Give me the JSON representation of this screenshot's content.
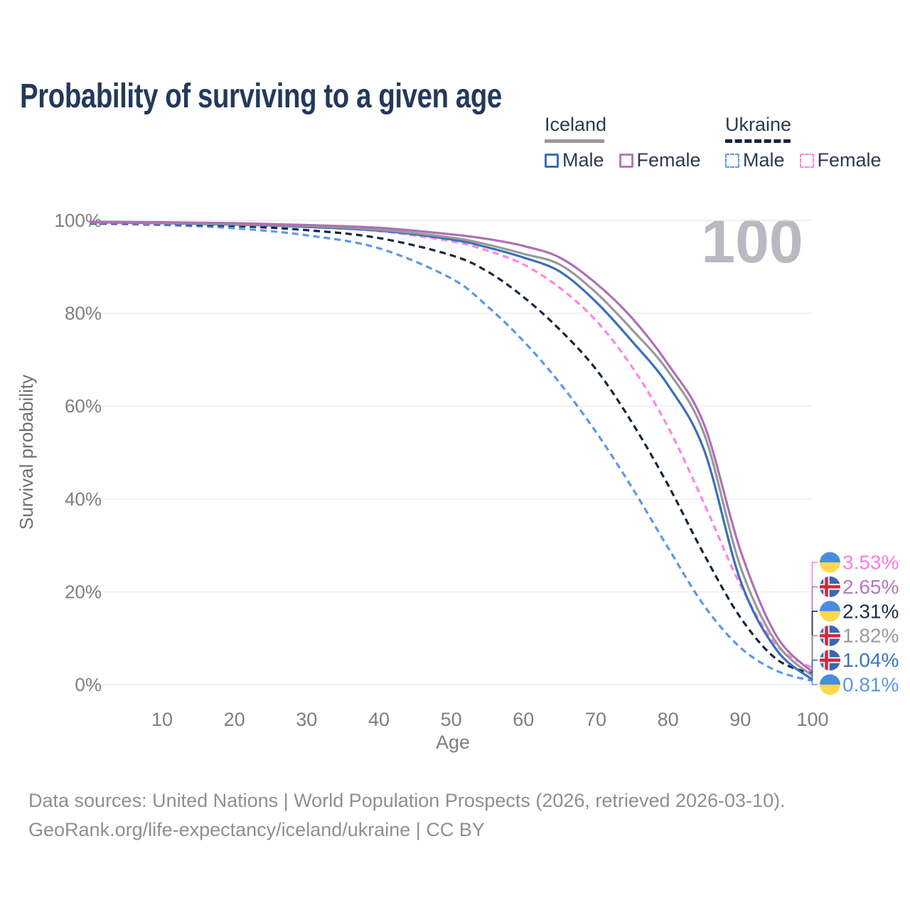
{
  "title": "Probability of surviving to a given age",
  "watermark": "100",
  "legend": {
    "groups": [
      {
        "label": "Iceland",
        "line_style": "solid",
        "line_color": "#9a9a9a",
        "items": [
          {
            "label": "Male",
            "color": "#3a70b8",
            "style": "solid"
          },
          {
            "label": "Female",
            "color": "#b678bb",
            "style": "solid"
          }
        ]
      },
      {
        "label": "Ukraine",
        "line_style": "dashed",
        "line_color": "#17263f",
        "items": [
          {
            "label": "Male",
            "color": "#5b97ea",
            "style": "dashed"
          },
          {
            "label": "Female",
            "color": "#ff85e2",
            "style": "dashed"
          }
        ]
      }
    ]
  },
  "chart_data": {
    "type": "line",
    "title": "Probability of surviving to a given age",
    "xlabel": "Age",
    "ylabel": "Survival probability",
    "xlim": [
      0,
      100
    ],
    "ylim": [
      0,
      100
    ],
    "grid": true,
    "x_ticks": [
      10,
      20,
      30,
      40,
      50,
      60,
      70,
      80,
      90,
      100
    ],
    "y_ticks": [
      "100%",
      "80%",
      "60%",
      "40%",
      "20%",
      "0%"
    ],
    "y_tick_values": [
      100,
      80,
      60,
      40,
      20,
      0
    ],
    "x": [
      0,
      10,
      20,
      30,
      40,
      50,
      55,
      60,
      65,
      70,
      75,
      80,
      85,
      90,
      95,
      100
    ],
    "series": [
      {
        "id": "ukraine-male",
        "country": "ukraine",
        "sex": "male",
        "color": "#5b97ea",
        "dashed": true,
        "values": [
          99.3,
          99.0,
          98.3,
          96.8,
          94.0,
          87.5,
          81.5,
          74.0,
          65.0,
          54.5,
          42.5,
          29.5,
          17.0,
          8.0,
          3.0,
          0.81
        ],
        "end_label": "0.81%",
        "end_label_color": "#5b97ea",
        "end_value": 0.81
      },
      {
        "id": "ukraine-all",
        "country": "ukraine",
        "sex": "all",
        "color": "#17263f",
        "dashed": true,
        "values": [
          99.4,
          99.2,
          98.8,
          97.9,
          96.2,
          92.5,
          89.0,
          83.5,
          76.5,
          68.0,
          56.5,
          43.0,
          28.0,
          14.5,
          5.5,
          2.31
        ],
        "end_label": "2.31%",
        "end_label_color": "#1d2c47",
        "end_value": 2.31
      },
      {
        "id": "ukraine-female",
        "country": "ukraine",
        "sex": "female",
        "color": "#ff85e2",
        "dashed": true,
        "values": [
          99.5,
          99.3,
          99.1,
          98.6,
          97.7,
          95.5,
          93.5,
          90.5,
          85.5,
          78.5,
          68.5,
          55.5,
          39.0,
          21.5,
          8.5,
          3.53
        ],
        "end_label": "3.53%",
        "end_label_color": "#ff7ce0",
        "end_value": 3.53
      },
      {
        "id": "iceland-male",
        "country": "iceland",
        "sex": "male",
        "color": "#3a70b8",
        "dashed": false,
        "values": [
          99.6,
          99.4,
          99.1,
          98.6,
          97.8,
          95.9,
          94.2,
          92.0,
          89.0,
          82.5,
          74.0,
          64.5,
          50.5,
          22.5,
          7.5,
          1.04
        ],
        "end_label": "1.04%",
        "end_label_color": "#3b74c4",
        "end_value": 1.04
      },
      {
        "id": "iceland-all",
        "country": "iceland",
        "sex": "all",
        "color": "#999999",
        "dashed": false,
        "values": [
          99.7,
          99.5,
          99.2,
          98.8,
          98.0,
          96.3,
          94.8,
          92.8,
          90.5,
          84.5,
          76.5,
          67.5,
          54.0,
          25.5,
          9.0,
          1.82
        ],
        "end_label": "1.82%",
        "end_label_color": "#9a9a9a",
        "end_value": 1.82
      },
      {
        "id": "iceland-female",
        "country": "iceland",
        "sex": "female",
        "color": "#b06fb5",
        "dashed": false,
        "values": [
          99.7,
          99.6,
          99.4,
          99.0,
          98.4,
          97.0,
          96.0,
          94.5,
          92.0,
          86.5,
          79.0,
          69.0,
          56.0,
          29.0,
          10.5,
          2.65
        ],
        "end_label": "2.65%",
        "end_label_color": "#b678bb",
        "end_value": 2.65
      }
    ],
    "hover_age": "100",
    "flag_colors": {
      "ukraine_blue": "#4a8ce2",
      "ukraine_yellow": "#ffd84d",
      "iceland_blue": "#3f65ab",
      "iceland_red": "#d42a3c",
      "iceland_white": "#ffffff"
    }
  },
  "footer": {
    "line1": "Data sources: United Nations | World Population Prospects (2026, retrieved 2026-03-10).",
    "line2": "GeoRank.org/life-expectancy/iceland/ukraine | CC BY"
  }
}
